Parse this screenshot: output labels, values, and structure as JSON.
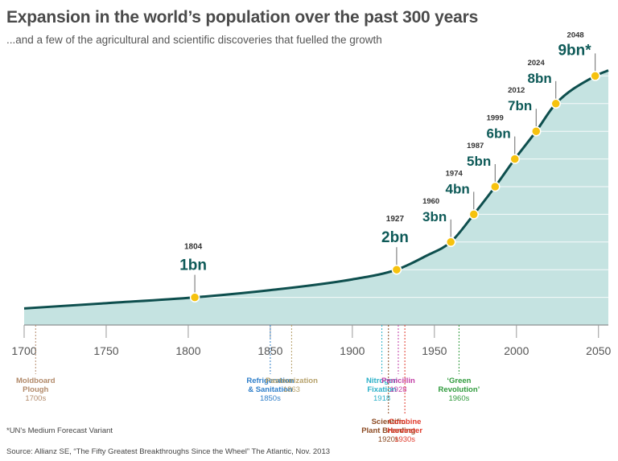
{
  "title": "Expansion in the world’s population over the past 300 years",
  "subtitle": "...and a few of the agricultural and scientific discoveries that fuelled the growth",
  "footnote": "*UN's Medium Forecast Variant",
  "source": "Source: Allianz SE, “The Fifty Greatest Breakthroughs Since the Wheel” The Atlantic, Nov. 2013",
  "colors": {
    "area_fill": "#c5e3e1",
    "line": "#0e4f4e",
    "milestone_dot": "#f6c20e",
    "milestone_text": "#0e5a58",
    "grid": "#ffffff",
    "axis": "#7a7a7a"
  },
  "chart_data": {
    "type": "area",
    "xlim": [
      1700,
      2056
    ],
    "ylim": [
      0,
      10
    ],
    "x_ticks": [
      1700,
      1750,
      1800,
      1850,
      1900,
      1950,
      2000,
      2050
    ],
    "grid": true,
    "series": [
      {
        "x": [
          1700,
          1750,
          1804,
          1850,
          1900,
          1927,
          1945,
          1960,
          1974,
          1987,
          1999,
          2012,
          2024,
          2048,
          2056
        ],
        "values": [
          0.6,
          0.79,
          1.0,
          1.26,
          1.65,
          2.0,
          2.5,
          3.0,
          4.0,
          5.0,
          6.0,
          7.0,
          8.0,
          9.0,
          9.2
        ]
      }
    ],
    "milestones": [
      {
        "year": "1804",
        "pop": "1bn",
        "x": 1804,
        "y": 1
      },
      {
        "year": "1927",
        "pop": "2bn",
        "x": 1927,
        "y": 2
      },
      {
        "year": "1960",
        "pop": "3bn",
        "x": 1960,
        "y": 3
      },
      {
        "year": "1974",
        "pop": "4bn",
        "x": 1974,
        "y": 4
      },
      {
        "year": "1987",
        "pop": "5bn",
        "x": 1987,
        "y": 5
      },
      {
        "year": "1999",
        "pop": "6bn",
        "x": 1999,
        "y": 6
      },
      {
        "year": "2012",
        "pop": "7bn",
        "x": 2012,
        "y": 7
      },
      {
        "year": "2024",
        "pop": "8bn",
        "x": 2024,
        "y": 8
      },
      {
        "year": "2048",
        "pop": "9bn*",
        "x": 2048,
        "y": 9
      }
    ],
    "discoveries": [
      {
        "lines": [
          "Moldboard",
          "Plough"
        ],
        "date": "1700s",
        "x": 1707,
        "color": "#b28a6a",
        "level": 0
      },
      {
        "lines": [
          "Refrigeration",
          "& Sanitation"
        ],
        "date": "1850s",
        "x": 1850,
        "color": "#2e7ec9",
        "level": 0
      },
      {
        "lines": [
          "Pasteurization"
        ],
        "date": "1863",
        "x": 1863,
        "color": "#b5a06a",
        "level": 0
      },
      {
        "lines": [
          "Nitrogen",
          "Fixation"
        ],
        "date": "1918",
        "x": 1918,
        "color": "#2bb0c8",
        "level": 0
      },
      {
        "lines": [
          "Scientific",
          "Plant Breeding"
        ],
        "date": "1920s",
        "x": 1922,
        "color": "#8b4a22",
        "level": 1
      },
      {
        "lines": [
          "Penicillin"
        ],
        "date": "1928",
        "x": 1928,
        "color": "#c23fa6",
        "level": 0
      },
      {
        "lines": [
          "Combine",
          "Harvester"
        ],
        "date": "1930s",
        "x": 1932,
        "color": "#e03b2c",
        "level": 1
      },
      {
        "lines": [
          "‘Green",
          "Revolution’"
        ],
        "date": "1960s",
        "x": 1965,
        "color": "#2f9a3c",
        "level": 0
      }
    ]
  }
}
